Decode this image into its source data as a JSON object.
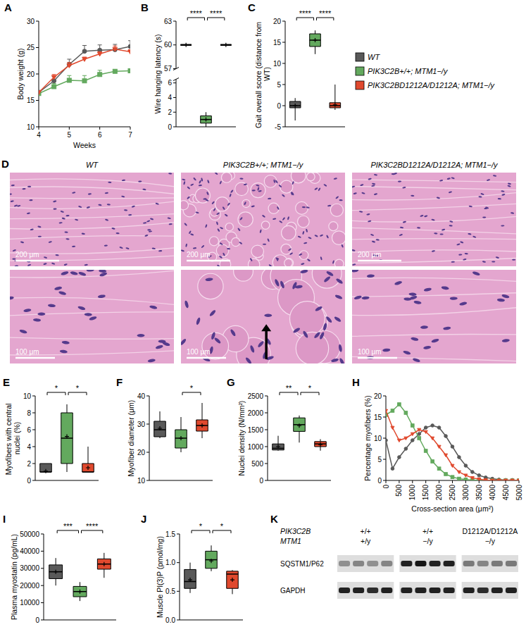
{
  "chart_data": [
    {
      "type": "line",
      "label": "A",
      "x_label": "Weeks",
      "y_label": "Body weight (g)",
      "x": [
        4,
        4.5,
        5,
        5.5,
        6,
        6.5,
        7
      ],
      "xlim": [
        4,
        7
      ],
      "xticks": [
        4,
        5,
        6,
        7
      ],
      "ylim": [
        10,
        30
      ],
      "yticks": [
        10,
        15,
        20,
        25,
        30
      ],
      "series": [
        {
          "color": "#595959",
          "marker": "circle",
          "values": [
            16.5,
            18.7,
            21.8,
            24.3,
            24.5,
            24.6,
            25.2
          ],
          "errors": [
            0.4,
            0.8,
            1.0,
            1.1,
            1.0,
            1.0,
            1.1
          ]
        },
        {
          "color": "#63a95e",
          "marker": "square",
          "values": [
            16.3,
            17.6,
            18.8,
            18.7,
            19.9,
            20.5,
            20.6
          ],
          "errors": [
            0.4,
            0.6,
            0.9,
            1.0,
            0.8,
            0.2,
            0.3
          ]
        },
        {
          "color": "#e0492e",
          "marker": "triangle",
          "values": [
            16.5,
            19.4,
            21.6,
            22.8,
            23.8,
            24.7,
            24.2
          ],
          "errors": [
            0.3,
            0.5,
            0.6,
            0.4,
            0.4,
            0.6,
            0.4
          ]
        }
      ]
    },
    {
      "type": "box",
      "label": "B",
      "y_label": "Wire hanging latency (s)",
      "ylim": [
        0,
        63
      ],
      "y_break": [
        6.5,
        57
      ],
      "yticks": [
        0,
        2,
        4,
        6,
        57,
        60,
        63
      ],
      "series": [
        {
          "color": "#595959",
          "min": 60,
          "q1": 60,
          "median": 60,
          "q3": 60,
          "max": 60,
          "mean": 60
        },
        {
          "color": "#63a95e",
          "min": 0,
          "q1": 0.5,
          "median": 1,
          "q3": 1.5,
          "max": 2,
          "mean": 1
        },
        {
          "color": "#e0492e",
          "min": 60,
          "q1": 60,
          "median": 60,
          "q3": 60,
          "max": 60,
          "mean": 60
        }
      ],
      "annotations": [
        {
          "text": "****",
          "between": [
            0,
            1
          ]
        },
        {
          "text": "****",
          "between": [
            1,
            2
          ]
        }
      ]
    },
    {
      "type": "box",
      "label": "C",
      "y_label": "Gait overall score (distance from WT)",
      "ylim": [
        -5,
        20
      ],
      "yticks": [
        -5,
        0,
        5,
        10,
        15,
        20
      ],
      "legend": "right",
      "series": [
        {
          "name": "WT",
          "color": "#595959",
          "min": -3.5,
          "q1": -0.5,
          "median": 0,
          "q3": 1,
          "max": 1.8,
          "mean": 0
        },
        {
          "name": "PIK3C2B+/+; MTM1−/y",
          "color": "#63a95e",
          "min": 12.2,
          "q1": 14,
          "median": 15.5,
          "q3": 17,
          "max": 17.8,
          "mean": 15.5
        },
        {
          "name": "PIK3C2BD1212A/D1212A; MTM1−/y",
          "color": "#e0492e",
          "min": -1,
          "q1": -0.5,
          "median": 0,
          "q3": 0.7,
          "max": 5,
          "mean": 0.2
        }
      ],
      "annotations": [
        {
          "text": "****",
          "between": [
            0,
            1
          ]
        },
        {
          "text": "****",
          "between": [
            1,
            2
          ]
        }
      ]
    },
    {
      "type": "image",
      "label": "D",
      "columns": [
        {
          "title": "WT",
          "scale_bars": [
            "200 μm",
            "100 μm"
          ]
        },
        {
          "title": "PIK3C2B+/+; MTM1−/y",
          "scale_bars": [
            "200 μm",
            "100 μm"
          ]
        },
        {
          "title": "PIK3C2BD1212A/D1212A; MTM1−/y",
          "scale_bars": [
            "200 μm",
            "100 μm"
          ]
        }
      ]
    },
    {
      "type": "box",
      "label": "E",
      "y_label": "Myofibers with central nuclei (%)",
      "ylim": [
        0,
        10
      ],
      "yticks": [
        0,
        2,
        4,
        6,
        8,
        10
      ],
      "series": [
        {
          "color": "#595959",
          "min": 1,
          "q1": 1,
          "median": 1,
          "q3": 2,
          "max": 2,
          "mean": 1.1
        },
        {
          "color": "#63a95e",
          "min": 1,
          "q1": 2,
          "median": 5,
          "q3": 8,
          "max": 9,
          "mean": 5.2
        },
        {
          "color": "#e0492e",
          "min": 1,
          "q1": 1,
          "median": 1,
          "q3": 2,
          "max": 4,
          "mean": 1.5
        }
      ],
      "annotations": [
        {
          "text": "*",
          "between": [
            0,
            1
          ]
        },
        {
          "text": "*",
          "between": [
            1,
            2
          ]
        }
      ]
    },
    {
      "type": "box",
      "label": "F",
      "y_label": "Myofiber diameter (μm)",
      "ylim": [
        10,
        40
      ],
      "yticks": [
        10,
        20,
        30,
        40
      ],
      "series": [
        {
          "color": "#595959",
          "min": 25,
          "q1": 25.5,
          "median": 28,
          "q3": 31,
          "max": 34.5,
          "mean": 28.5
        },
        {
          "color": "#63a95e",
          "min": 20,
          "q1": 21.5,
          "median": 25,
          "q3": 28,
          "max": 32.5,
          "mean": 25
        },
        {
          "color": "#e0492e",
          "min": 25,
          "q1": 27.5,
          "median": 29.5,
          "q3": 31.5,
          "max": 37.5,
          "mean": 29.5
        }
      ],
      "annotations": [
        {
          "text": "*",
          "between": [
            1,
            2
          ]
        }
      ]
    },
    {
      "type": "box",
      "label": "G",
      "y_label": "Nuclei density (N/mm²)",
      "ylim": [
        0,
        2500
      ],
      "yticks": [
        0,
        500,
        1000,
        1500,
        2000,
        2500
      ],
      "series": [
        {
          "color": "#595959",
          "min": 880,
          "q1": 900,
          "median": 950,
          "q3": 1080,
          "max": 1320,
          "mean": 1000
        },
        {
          "color": "#63a95e",
          "min": 1120,
          "q1": 1450,
          "median": 1650,
          "q3": 1850,
          "max": 1920,
          "mean": 1620
        },
        {
          "color": "#e0492e",
          "min": 880,
          "q1": 1000,
          "median": 1080,
          "q3": 1150,
          "max": 1220,
          "mean": 1060
        }
      ],
      "annotations": [
        {
          "text": "**",
          "between": [
            0,
            1
          ]
        },
        {
          "text": "*",
          "between": [
            1,
            2
          ]
        }
      ]
    },
    {
      "type": "line",
      "label": "H",
      "x_label": "Cross-section area (μm²)",
      "y_label": "Percentage myofibers (%)",
      "x": [
        0,
        250,
        500,
        750,
        1000,
        1250,
        1500,
        1750,
        2000,
        2250,
        2500,
        2750,
        3000,
        3250,
        3500,
        3750,
        4000,
        4250,
        4500,
        4750,
        5000
      ],
      "xlim": [
        0,
        5000
      ],
      "xticks": [
        0,
        500,
        1000,
        1500,
        2000,
        2500,
        3000,
        3500,
        4000,
        4500,
        5000
      ],
      "ylim": [
        0,
        20
      ],
      "yticks": [
        0,
        5,
        10,
        15,
        20
      ],
      "series": [
        {
          "color": "#595959",
          "marker": "circle",
          "values": [
            9.5,
            2.8,
            5.5,
            7.5,
            9.5,
            11,
            12.5,
            13,
            12.5,
            10.5,
            8,
            5.5,
            3.5,
            2,
            1.2,
            0.7,
            0.4,
            0.2,
            0.1,
            0.1,
            0
          ]
        },
        {
          "color": "#63a95e",
          "marker": "square",
          "values": [
            15.5,
            16.5,
            18,
            16,
            13,
            10,
            7,
            4.5,
            2.8,
            1.5,
            0.8,
            0.4,
            0.2,
            0.1,
            0,
            0,
            0,
            0,
            0,
            0,
            0
          ]
        },
        {
          "color": "#e0492e",
          "marker": "triangle",
          "values": [
            16.5,
            12.5,
            9.5,
            10,
            11,
            12,
            11.5,
            10,
            8,
            6,
            3.5,
            2,
            1.2,
            0.6,
            0.3,
            0.1,
            0,
            0,
            0,
            0,
            0
          ]
        }
      ]
    },
    {
      "type": "box",
      "label": "I",
      "y_label": "Plasma myostatin (pg/mL)",
      "ylim": [
        0,
        50000
      ],
      "yticks": [
        0,
        10000,
        20000,
        30000,
        40000,
        50000
      ],
      "series": [
        {
          "color": "#595959",
          "min": 20000,
          "q1": 24000,
          "median": 28000,
          "q3": 32000,
          "max": 36000,
          "mean": 28000
        },
        {
          "color": "#63a95e",
          "min": 11000,
          "q1": 13500,
          "median": 16500,
          "q3": 19500,
          "max": 22000,
          "mean": 16500
        },
        {
          "color": "#e0492e",
          "min": 24500,
          "q1": 29500,
          "median": 32500,
          "q3": 35500,
          "max": 39000,
          "mean": 32500
        }
      ],
      "annotations": [
        {
          "text": "***",
          "between": [
            0,
            1
          ]
        },
        {
          "text": "****",
          "between": [
            1,
            2
          ]
        }
      ]
    },
    {
      "type": "box",
      "label": "J",
      "y_label": "Muscle PI(3)P (pmol/mg)",
      "ylim": [
        0,
        1.5
      ],
      "yticks": [
        {
          "value": 0,
          "label": "0.0"
        },
        {
          "value": 0.5,
          "label": "0.5"
        },
        {
          "value": 1,
          "label": "1.0"
        },
        {
          "value": 1.5,
          "label": "1.5"
        }
      ],
      "series": [
        {
          "color": "#595959",
          "min": 0.47,
          "q1": 0.55,
          "median": 0.67,
          "q3": 0.88,
          "max": 1.0,
          "mean": 0.7
        },
        {
          "color": "#63a95e",
          "min": 0.85,
          "q1": 0.9,
          "median": 1.05,
          "q3": 1.2,
          "max": 1.3,
          "mean": 1.03
        },
        {
          "color": "#e0492e",
          "min": 0.45,
          "q1": 0.55,
          "median": 0.8,
          "q3": 0.85,
          "max": 0.87,
          "mean": 0.7
        }
      ],
      "annotations": [
        {
          "text": "*",
          "between": [
            0,
            1
          ]
        },
        {
          "text": "*",
          "between": [
            1,
            2
          ]
        }
      ]
    },
    {
      "type": "blot",
      "label": "K",
      "header_rows": [
        {
          "name": "PIK3C2B",
          "values": [
            "+/+",
            "+/+",
            "D1212A/D1212A"
          ]
        },
        {
          "name": "MTM1",
          "values": [
            "+/y",
            "−/y",
            "−/y"
          ]
        }
      ],
      "rows": [
        {
          "name": "SQSTM1/P62",
          "intensity": [
            [
              0.35,
              0.4,
              0.35,
              0.4
            ],
            [
              0.85,
              0.9,
              0.85,
              0.85
            ],
            [
              0.45,
              0.4,
              0.45,
              0.45
            ]
          ]
        },
        {
          "name": "GAPDH",
          "intensity": [
            [
              0.85,
              0.85,
              0.8,
              0.85
            ],
            [
              0.85,
              0.85,
              0.85,
              0.85
            ],
            [
              0.85,
              0.8,
              0.85,
              0.85
            ]
          ]
        }
      ]
    }
  ]
}
